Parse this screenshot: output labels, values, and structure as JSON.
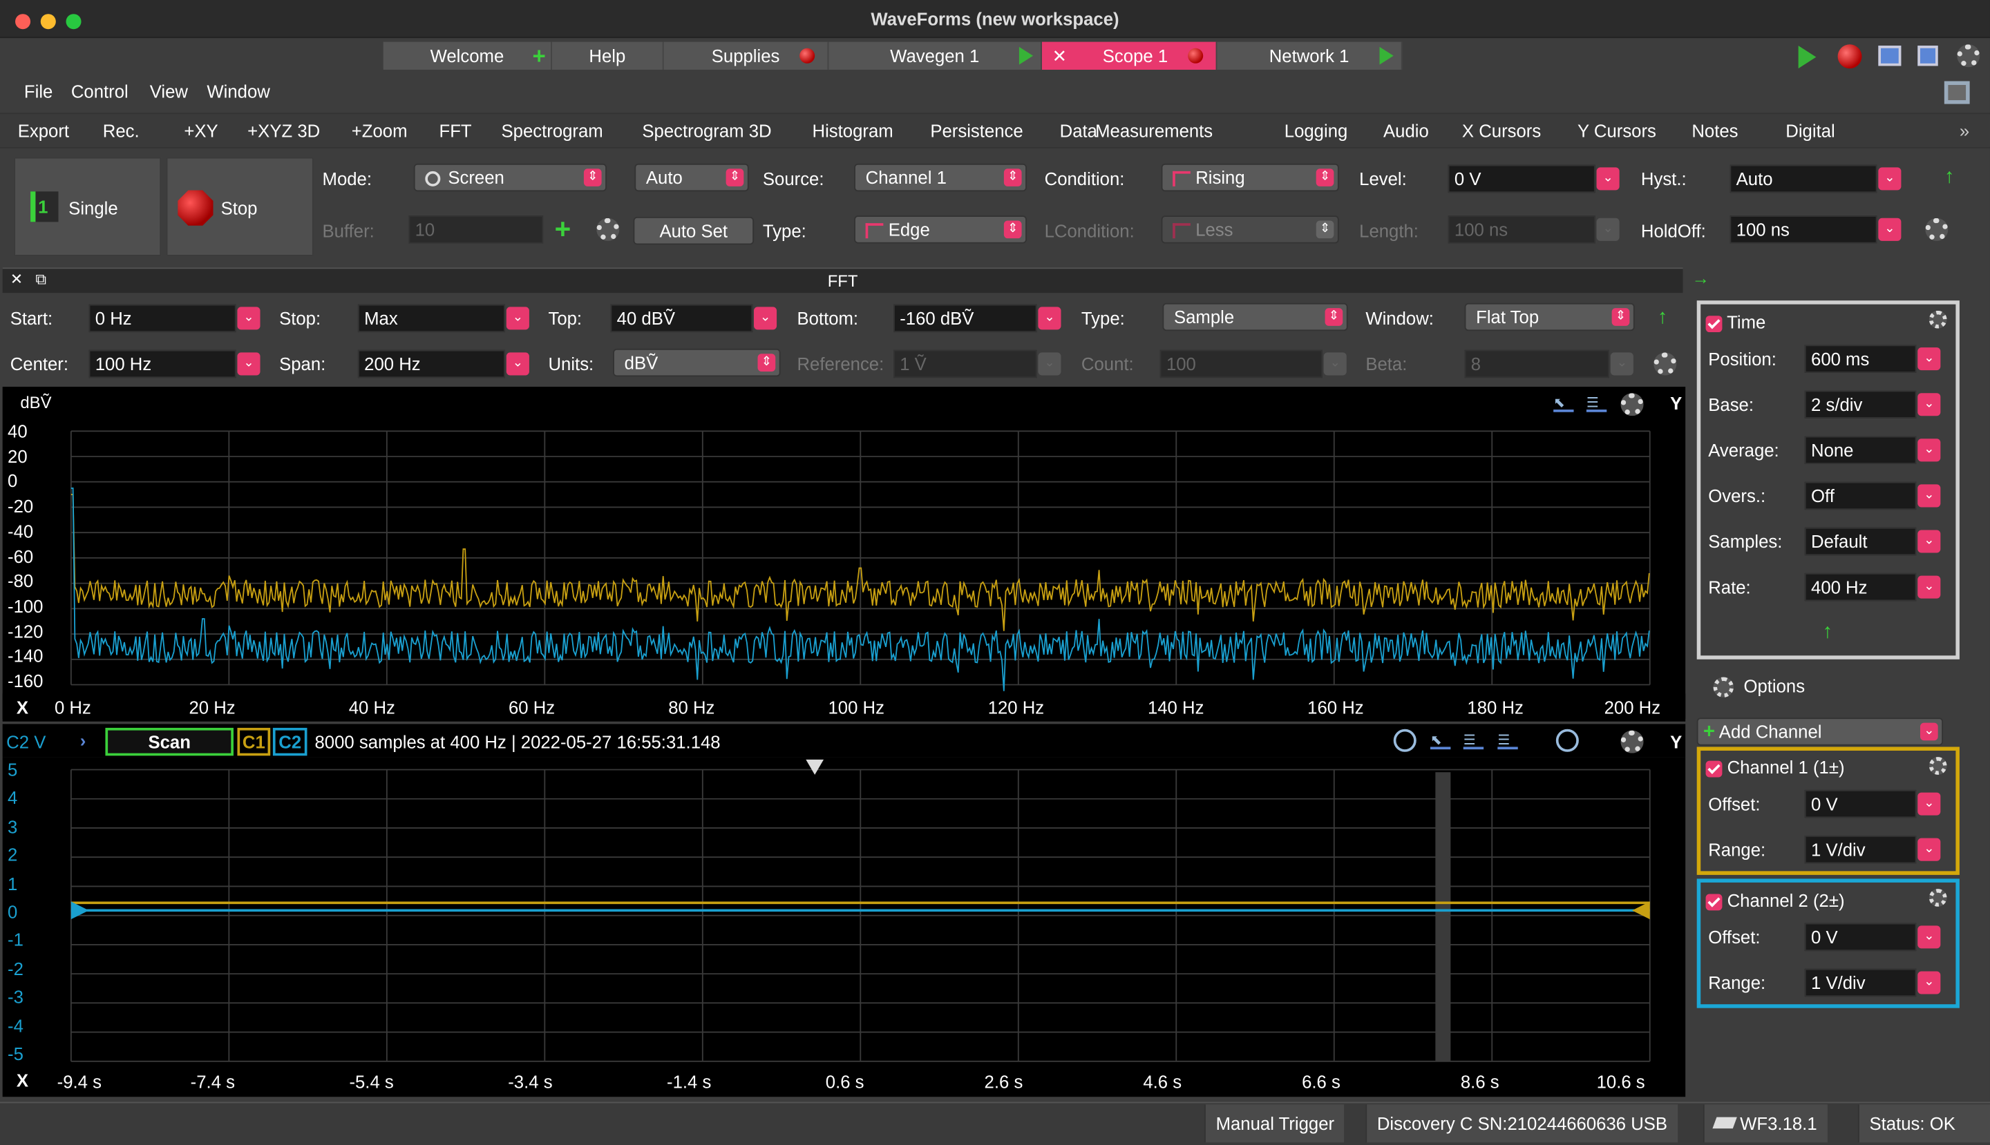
{
  "window": {
    "title": "WaveForms (new workspace)"
  },
  "tabs": [
    {
      "label": "Welcome",
      "icon": "plus-icon"
    },
    {
      "label": "Help",
      "icon": "none"
    },
    {
      "label": "Supplies",
      "icon": "record-icon"
    },
    {
      "label": "Wavegen 1",
      "icon": "play-icon"
    },
    {
      "label": "Scope 1",
      "icon": "record-icon",
      "active": true
    },
    {
      "label": "Network 1",
      "icon": "play-icon"
    }
  ],
  "menubar": [
    "File",
    "Control",
    "View",
    "Window"
  ],
  "toolbar": [
    "Export",
    "Rec.",
    "+XY",
    "+XYZ 3D",
    "+Zoom",
    "FFT",
    "Spectrogram",
    "Spectrogram 3D",
    "Histogram",
    "Persistence",
    "Data",
    "Measurements",
    "Logging",
    "Audio",
    "X Cursors",
    "Y Cursors",
    "Notes",
    "Digital"
  ],
  "acquire": {
    "single_label": "Single",
    "stop_label": "Stop",
    "mode_label": "Mode:",
    "mode_value": "Screen",
    "auto_value": "Auto",
    "buffer_label": "Buffer:",
    "buffer_value": "10",
    "autoset_label": "Auto Set"
  },
  "trigger": {
    "source_label": "Source:",
    "source_value": "Channel 1",
    "type_label": "Type:",
    "type_value": "Edge",
    "condition_label": "Condition:",
    "condition_value": "Rising",
    "lcondition_label": "LCondition:",
    "lcondition_value": "Less",
    "level_label": "Level:",
    "level_value": "0 V",
    "length_label": "Length:",
    "length_value": "100 ns",
    "hyst_label": "Hyst.:",
    "hyst_value": "Auto",
    "holdoff_label": "HoldOff:",
    "holdoff_value": "100 ns"
  },
  "fft": {
    "title": "FFT",
    "start_label": "Start:",
    "start_value": "0 Hz",
    "stop_label": "Stop:",
    "stop_value": "Max",
    "top_label": "Top:",
    "top_value": "40 dBṼ",
    "bottom_label": "Bottom:",
    "bottom_value": "-160 dBṼ",
    "type_label": "Type:",
    "type_value": "Sample",
    "window_label": "Window:",
    "window_value": "Flat Top",
    "center_label": "Center:",
    "center_value": "100 Hz",
    "span_label": "Span:",
    "span_value": "200 Hz",
    "units_label": "Units:",
    "units_value": "dBṼ",
    "reference_label": "Reference:",
    "reference_value": "1 Ṽ",
    "count_label": "Count:",
    "count_value": "100",
    "beta_label": "Beta:",
    "beta_value": "8",
    "y_unit": "dBṼ",
    "y_ticks": [
      "40",
      "20",
      "0",
      "-20",
      "-40",
      "-60",
      "-80",
      "-100",
      "-120",
      "-140",
      "-160"
    ],
    "x_ticks": [
      "0 Hz",
      "20 Hz",
      "40 Hz",
      "60 Hz",
      "80 Hz",
      "100 Hz",
      "120 Hz",
      "140 Hz",
      "160 Hz",
      "180 Hz",
      "200 Hz"
    ],
    "x_axis_letter": "X",
    "y_axis_letter": "Y"
  },
  "scope": {
    "channel_label": "C2 V",
    "scan_label": "Scan",
    "c1": "C1",
    "c2": "C2",
    "info": "8000 samples at 400 Hz | 2022-05-27 16:55:31.148",
    "y_ticks": [
      "5",
      "4",
      "3",
      "2",
      "1",
      "0",
      "-1",
      "-2",
      "-3",
      "-4",
      "-5"
    ],
    "x_ticks": [
      "-9.4 s",
      "-7.4 s",
      "-5.4 s",
      "-3.4 s",
      "-1.4 s",
      "0.6 s",
      "2.6 s",
      "4.6 s",
      "6.6 s",
      "8.6 s",
      "10.6 s"
    ],
    "x_axis_letter": "X",
    "y_axis_letter": "Y"
  },
  "time_panel": {
    "title": "Time",
    "rows": [
      {
        "label": "Position:",
        "value": "600 ms"
      },
      {
        "label": "Base:",
        "value": "2 s/div"
      },
      {
        "label": "Average:",
        "value": "None"
      },
      {
        "label": "Overs.:",
        "value": "Off"
      },
      {
        "label": "Samples:",
        "value": "Default"
      },
      {
        "label": "Rate:",
        "value": "400 Hz"
      }
    ]
  },
  "options_label": "Options",
  "add_channel_label": "Add Channel",
  "channels": [
    {
      "title": "Channel 1 (1±)",
      "offset_label": "Offset:",
      "offset_value": "0 V",
      "range_label": "Range:",
      "range_value": "1 V/div",
      "color": "#d4a80b"
    },
    {
      "title": "Channel 2 (2±)",
      "offset_label": "Offset:",
      "offset_value": "0 V",
      "range_label": "Range:",
      "range_value": "1 V/div",
      "color": "#1ba7d6"
    }
  ],
  "statusbar": {
    "trigger": "Manual Trigger",
    "device": "Discovery C SN:210244660636 USB",
    "version": "WF3.18.1",
    "status": "Status: OK"
  },
  "colors": {
    "accent": "#e8386e",
    "ch1": "#c8a012",
    "ch2": "#1aa0d0",
    "grid": "#3a3a3a"
  }
}
